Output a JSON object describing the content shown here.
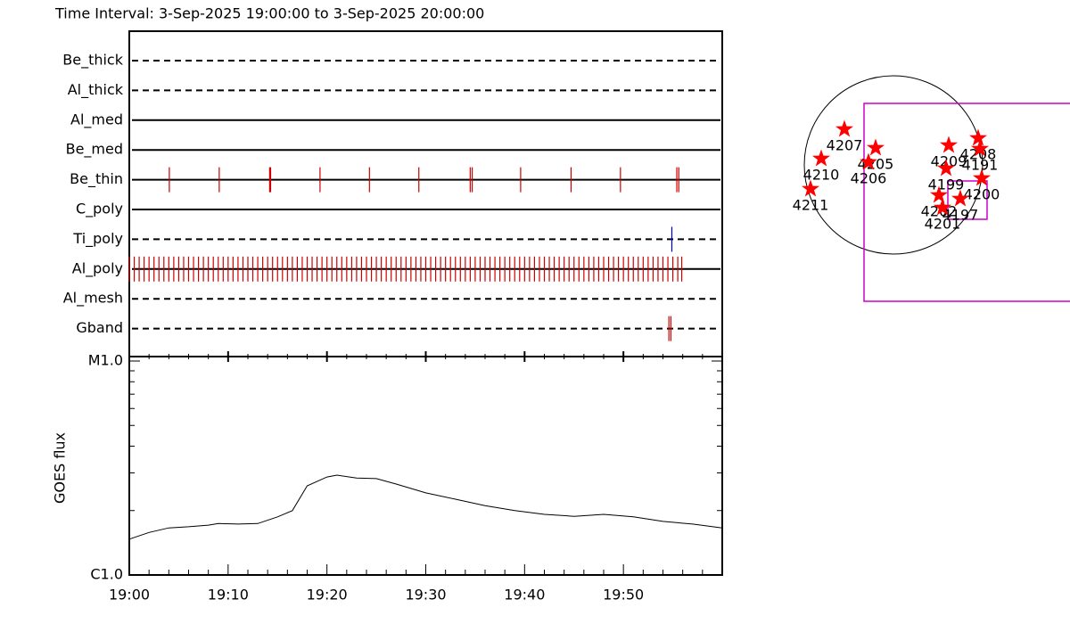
{
  "chart_data": [
    {
      "type": "timeline",
      "title": "Time Interval:  3-Sep-2025 19:00:00 to  3-Sep-2025 20:00:00",
      "rows": [
        {
          "name": "Be_thick",
          "style": "dashed",
          "color": "#cc0000",
          "events": []
        },
        {
          "name": "Al_thick",
          "style": "dashed",
          "color": "#cc0000",
          "events": []
        },
        {
          "name": "Al_med",
          "style": "solid",
          "color": "#cc0000",
          "events": []
        },
        {
          "name": "Be_med",
          "style": "solid",
          "color": "#cc0000",
          "events": []
        },
        {
          "name": "Be_thin",
          "style": "solid",
          "color": "#cc0000",
          "events": [
            4.05,
            9.1,
            14.2,
            14.3,
            19.3,
            24.3,
            29.3,
            34.5,
            34.7,
            39.6,
            44.7,
            49.7,
            55.4,
            55.6
          ]
        },
        {
          "name": "C_poly",
          "style": "solid",
          "color": "#cc0000",
          "events": []
        },
        {
          "name": "Ti_poly",
          "style": "dashed",
          "color": "#0000cc",
          "events": [
            54.9
          ]
        },
        {
          "name": "Al_poly",
          "style": "solid",
          "color": "#cc0000",
          "events": [
            0,
            0.5,
            1,
            1.5,
            2,
            2.5,
            3,
            3.5,
            4,
            4.5,
            5,
            5.5,
            6,
            6.5,
            7,
            7.5,
            8,
            8.5,
            9,
            9.5,
            10,
            10.5,
            11,
            11.5,
            12,
            12.5,
            13,
            13.5,
            14,
            14.5,
            15,
            15.5,
            16,
            16.5,
            17,
            17.5,
            18,
            18.5,
            19,
            19.5,
            20,
            20.5,
            21,
            21.5,
            22,
            22.5,
            23,
            23.5,
            24,
            24.5,
            25,
            25.5,
            26,
            26.5,
            27,
            27.5,
            28,
            28.5,
            29,
            29.5,
            30,
            30.5,
            31,
            31.5,
            32,
            32.5,
            33,
            33.5,
            34,
            34.5,
            35,
            35.5,
            36,
            36.5,
            37,
            37.5,
            38,
            38.5,
            39,
            39.5,
            40,
            40.5,
            41,
            41.5,
            42,
            42.5,
            43,
            43.5,
            44,
            44.5,
            45,
            45.5,
            46,
            46.5,
            47,
            47.5,
            48,
            48.5,
            49,
            49.5,
            50,
            50.5,
            51,
            51.5,
            52,
            52.5,
            53,
            53.5,
            54,
            54.5,
            55,
            55.5,
            55.9
          ]
        },
        {
          "name": "Al_mesh",
          "style": "dashed",
          "color": "#cc0000",
          "events": []
        },
        {
          "name": "Gband",
          "style": "dashed",
          "color": "#cc0000",
          "events": [
            54.6,
            54.8
          ]
        }
      ]
    },
    {
      "type": "line",
      "ylabel": "GOES flux",
      "log_y": true,
      "color": "#000000",
      "xlim": [
        0,
        60
      ],
      "xticks": [
        {
          "value": 0,
          "label": "19:00"
        },
        {
          "value": 10,
          "label": "19:10"
        },
        {
          "value": 20,
          "label": "19:20"
        },
        {
          "value": 30,
          "label": "19:30"
        },
        {
          "value": 40,
          "label": "19:40"
        },
        {
          "value": 50,
          "label": "19:50"
        }
      ],
      "xminorticks": [
        2,
        4,
        6,
        8,
        12,
        14,
        16,
        18,
        22,
        24,
        26,
        28,
        32,
        34,
        36,
        38,
        42,
        44,
        46,
        48,
        52,
        54,
        56,
        58
      ],
      "ylim": [
        1e-06,
        1e-05
      ],
      "yticks": [
        {
          "value": 1e-06,
          "label": "C1.0"
        },
        {
          "value": 1e-05,
          "label": "M1.0"
        }
      ],
      "yminorticks": [
        2e-06,
        3e-06,
        4e-06,
        5e-06,
        6e-06,
        7e-06,
        8e-06,
        9e-06
      ],
      "x": [
        0,
        2,
        4,
        6,
        8,
        9,
        11,
        13,
        15,
        16.5,
        18,
        20,
        21,
        23,
        25,
        27,
        30,
        33,
        36,
        39,
        42,
        45,
        48,
        51,
        54,
        57,
        60
      ],
      "values": [
        1.47e-06,
        1.58e-06,
        1.66e-06,
        1.68e-06,
        1.71e-06,
        1.74e-06,
        1.73e-06,
        1.74e-06,
        1.87e-06,
        2e-06,
        2.61e-06,
        2.87e-06,
        2.93e-06,
        2.84e-06,
        2.82e-06,
        2.66e-06,
        2.42e-06,
        2.26e-06,
        2.11e-06,
        2e-06,
        1.92e-06,
        1.88e-06,
        1.92e-06,
        1.87e-06,
        1.78e-06,
        1.73e-06,
        1.66e-06
      ]
    },
    {
      "type": "scatter",
      "color": "#ff0000",
      "regions": [
        {
          "label": "4207",
          "x": -0.55,
          "y": 0.4
        },
        {
          "label": "4210",
          "x": -0.81,
          "y": 0.07
        },
        {
          "label": "4211",
          "x": -0.93,
          "y": -0.27
        },
        {
          "label": "4205",
          "x": -0.2,
          "y": 0.19
        },
        {
          "label": "4206",
          "x": -0.28,
          "y": 0.03
        },
        {
          "label": "4209",
          "x": 0.62,
          "y": 0.22
        },
        {
          "label": "4208",
          "x": 0.95,
          "y": 0.3
        },
        {
          "label": "4191",
          "x": 0.97,
          "y": 0.18
        },
        {
          "label": "4199",
          "x": 0.59,
          "y": -0.04
        },
        {
          "label": "4200",
          "x": 0.99,
          "y": -0.15
        },
        {
          "label": "4202",
          "x": 0.51,
          "y": -0.34
        },
        {
          "label": "4197",
          "x": 0.75,
          "y": -0.38
        },
        {
          "label": "4201",
          "x": 0.55,
          "y": -0.48
        }
      ]
    }
  ]
}
